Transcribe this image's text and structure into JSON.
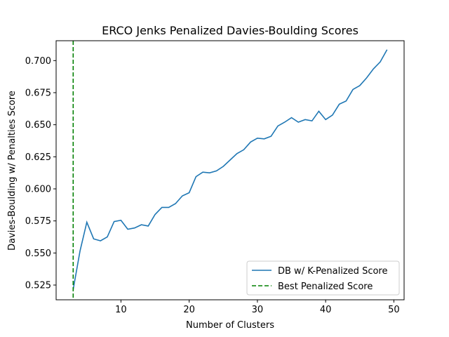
{
  "chart_data": {
    "type": "line",
    "title": "ERCO Jenks Penalized Davies-Boulding Scores",
    "xlabel": "Number of Clusters",
    "ylabel": "Davies-Boulding w/ Penalties Score",
    "xlim": [
      0.5,
      51.5
    ],
    "ylim": [
      0.5135,
      0.7155
    ],
    "xticks": [
      10,
      20,
      30,
      40,
      50
    ],
    "xtick_labels": [
      "10",
      "20",
      "30",
      "40",
      "50"
    ],
    "yticks": [
      0.525,
      0.55,
      0.575,
      0.6,
      0.625,
      0.65,
      0.675,
      0.7
    ],
    "ytick_labels": [
      "0.525",
      "0.550",
      "0.575",
      "0.600",
      "0.625",
      "0.650",
      "0.675",
      "0.700"
    ],
    "grid": false,
    "legend_position": "lower right",
    "series": [
      {
        "name": "DB w/ K-Penalized Score",
        "color": "#1f77b4",
        "style": "solid",
        "x": [
          3,
          4,
          5,
          6,
          7,
          8,
          9,
          10,
          11,
          12,
          13,
          14,
          15,
          16,
          17,
          18,
          19,
          20,
          21,
          22,
          23,
          24,
          25,
          26,
          27,
          28,
          29,
          30,
          31,
          32,
          33,
          34,
          35,
          36,
          37,
          38,
          39,
          40,
          41,
          42,
          43,
          44,
          45,
          46,
          47,
          48,
          49
        ],
        "y": [
          0.5215,
          0.5515,
          0.574,
          0.561,
          0.5595,
          0.5625,
          0.5745,
          0.5755,
          0.5685,
          0.5695,
          0.572,
          0.571,
          0.58,
          0.5855,
          0.5855,
          0.5885,
          0.5945,
          0.597,
          0.6095,
          0.613,
          0.6125,
          0.614,
          0.6175,
          0.6225,
          0.6275,
          0.6305,
          0.6365,
          0.6395,
          0.639,
          0.641,
          0.649,
          0.652,
          0.6555,
          0.652,
          0.654,
          0.653,
          0.6605,
          0.654,
          0.6575,
          0.666,
          0.6685,
          0.6775,
          0.6805,
          0.6865,
          0.6935,
          0.699,
          0.7085
        ]
      },
      {
        "name": "Best Penalized Score",
        "color": "#008000",
        "style": "dashed",
        "vline_x": 3
      }
    ]
  }
}
